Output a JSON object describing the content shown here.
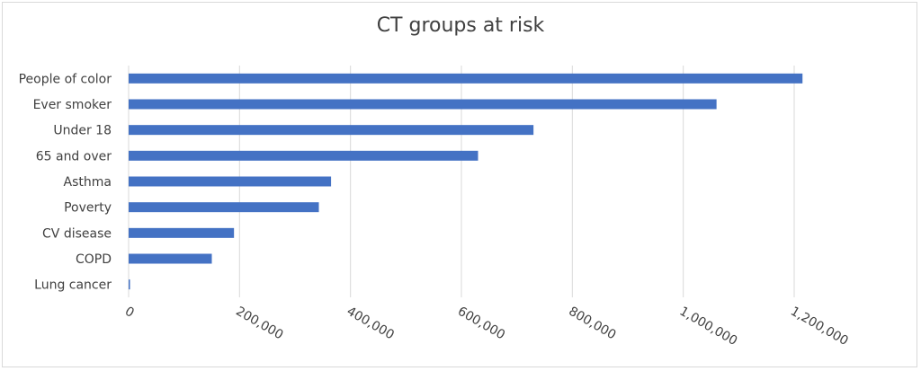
{
  "chart_data": {
    "type": "bar",
    "orientation": "horizontal",
    "title": "CT groups at risk",
    "categories": [
      "People of color",
      "Ever smoker",
      "Under 18",
      "65 and over",
      "Asthma",
      "Poverty",
      "CV disease",
      "COPD",
      "Lung cancer"
    ],
    "values": [
      1215000,
      1060000,
      730000,
      630000,
      365000,
      343000,
      190000,
      150000,
      2500
    ],
    "xlim": [
      0,
      1200000
    ],
    "xticks": [
      0,
      200000,
      400000,
      600000,
      800000,
      1000000,
      1200000
    ],
    "xtick_labels": [
      "0",
      "200,000",
      "400,000",
      "600,000",
      "800,000",
      "1,000,000",
      "1,200,000"
    ],
    "xlabel": "",
    "ylabel": "",
    "grid": "vertical",
    "bar_color": "#4472c4",
    "grid_color": "#d9d9d9"
  }
}
